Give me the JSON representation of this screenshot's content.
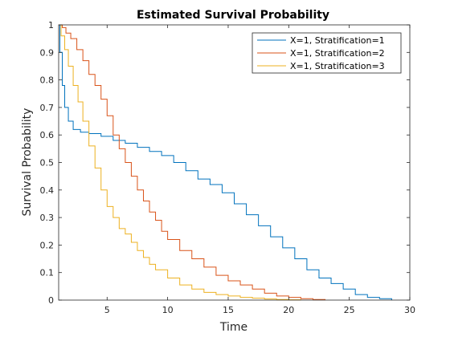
{
  "chart_data": {
    "type": "line",
    "title": "Estimated Survival Probability",
    "xlabel": "Time",
    "ylabel": "Survival Probability",
    "xlim": [
      1,
      30
    ],
    "ylim": [
      0,
      1
    ],
    "xticks": [
      5,
      10,
      15,
      20,
      25,
      30
    ],
    "yticks": [
      0,
      0.1,
      0.2,
      0.3,
      0.4,
      0.5,
      0.6,
      0.7,
      0.8,
      0.9,
      1
    ],
    "grid": false,
    "legend_position": "top-right",
    "series": [
      {
        "name": "X=1, Stratification=1",
        "color": "#0072BD",
        "x": [
          1,
          1.1,
          1.3,
          1.5,
          1.8,
          2.2,
          2.8,
          3.5,
          4.5,
          5.5,
          6.5,
          7.5,
          8.5,
          9.5,
          10.5,
          11.5,
          12.5,
          13.5,
          14.5,
          15.5,
          16.5,
          17.5,
          18.5,
          19.5,
          20.5,
          21.5,
          22.5,
          23.5,
          24.5,
          25.5,
          26.5,
          27.5,
          28.5
        ],
        "y": [
          1,
          0.9,
          0.78,
          0.7,
          0.65,
          0.62,
          0.61,
          0.605,
          0.595,
          0.58,
          0.57,
          0.555,
          0.54,
          0.525,
          0.5,
          0.47,
          0.44,
          0.42,
          0.39,
          0.35,
          0.31,
          0.27,
          0.23,
          0.19,
          0.15,
          0.11,
          0.08,
          0.06,
          0.04,
          0.02,
          0.01,
          0.005,
          0
        ]
      },
      {
        "name": "X=1, Stratification=2",
        "color": "#D95319",
        "x": [
          1,
          1.3,
          1.6,
          2,
          2.5,
          3,
          3.5,
          4,
          4.5,
          5,
          5.5,
          6,
          6.5,
          7,
          7.5,
          8,
          8.5,
          9,
          9.5,
          10,
          11,
          12,
          13,
          14,
          15,
          16,
          17,
          18,
          19,
          20,
          21,
          22,
          23
        ],
        "y": [
          1,
          0.99,
          0.97,
          0.95,
          0.91,
          0.87,
          0.82,
          0.78,
          0.73,
          0.67,
          0.6,
          0.55,
          0.5,
          0.45,
          0.4,
          0.36,
          0.32,
          0.29,
          0.25,
          0.22,
          0.18,
          0.15,
          0.12,
          0.09,
          0.07,
          0.055,
          0.04,
          0.025,
          0.015,
          0.01,
          0.005,
          0.002,
          0
        ]
      },
      {
        "name": "X=1, Stratification=3",
        "color": "#EDB120",
        "x": [
          1,
          1.2,
          1.5,
          1.8,
          2.2,
          2.6,
          3,
          3.5,
          4,
          4.5,
          5,
          5.5,
          6,
          6.5,
          7,
          7.5,
          8,
          8.5,
          9,
          10,
          11,
          12,
          13,
          14,
          15,
          16,
          17,
          18,
          19,
          20,
          21
        ],
        "y": [
          1,
          0.96,
          0.91,
          0.85,
          0.78,
          0.72,
          0.65,
          0.56,
          0.48,
          0.4,
          0.34,
          0.3,
          0.26,
          0.24,
          0.21,
          0.18,
          0.155,
          0.13,
          0.11,
          0.08,
          0.055,
          0.04,
          0.028,
          0.02,
          0.015,
          0.01,
          0.007,
          0.004,
          0.002,
          0.001,
          0
        ]
      }
    ]
  }
}
